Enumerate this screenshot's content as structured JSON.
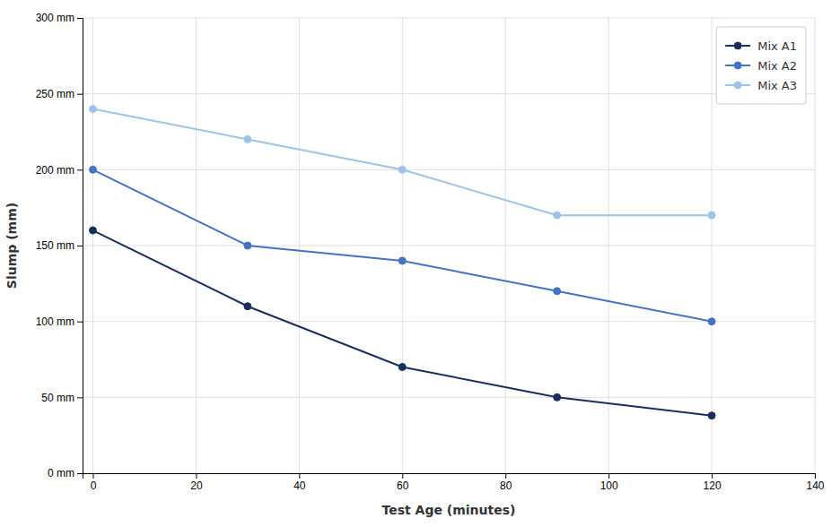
{
  "chart_data": {
    "type": "line",
    "xlabel": "Test Age (minutes)",
    "ylabel": "Slump (mm)",
    "x": [
      0,
      30,
      60,
      90,
      120
    ],
    "series": [
      {
        "name": "Mix A1",
        "color": "#1a2e5e",
        "marker": "circle",
        "values": [
          160,
          110,
          70,
          50,
          38
        ]
      },
      {
        "name": "Mix A2",
        "color": "#4472c4",
        "marker": "circle",
        "values": [
          200,
          150,
          140,
          120,
          100
        ]
      },
      {
        "name": "Mix A3",
        "color": "#9dc3e6",
        "marker": "circle",
        "values": [
          240,
          220,
          200,
          170,
          170
        ]
      }
    ],
    "xlim": [
      -2,
      140
    ],
    "ylim": [
      0,
      300
    ],
    "xticks": [
      0,
      20,
      40,
      60,
      80,
      100,
      120,
      140
    ],
    "yticks": [
      {
        "value": 0,
        "label": "0 mm"
      },
      {
        "value": 50,
        "label": "50 mm"
      },
      {
        "value": 100,
        "label": "100 mm"
      },
      {
        "value": 150,
        "label": "150 mm"
      },
      {
        "value": 200,
        "label": "200 mm"
      },
      {
        "value": 250,
        "label": "250 mm"
      },
      {
        "value": 300,
        "label": "300 mm"
      }
    ],
    "grid": true,
    "legend": "upper right"
  }
}
